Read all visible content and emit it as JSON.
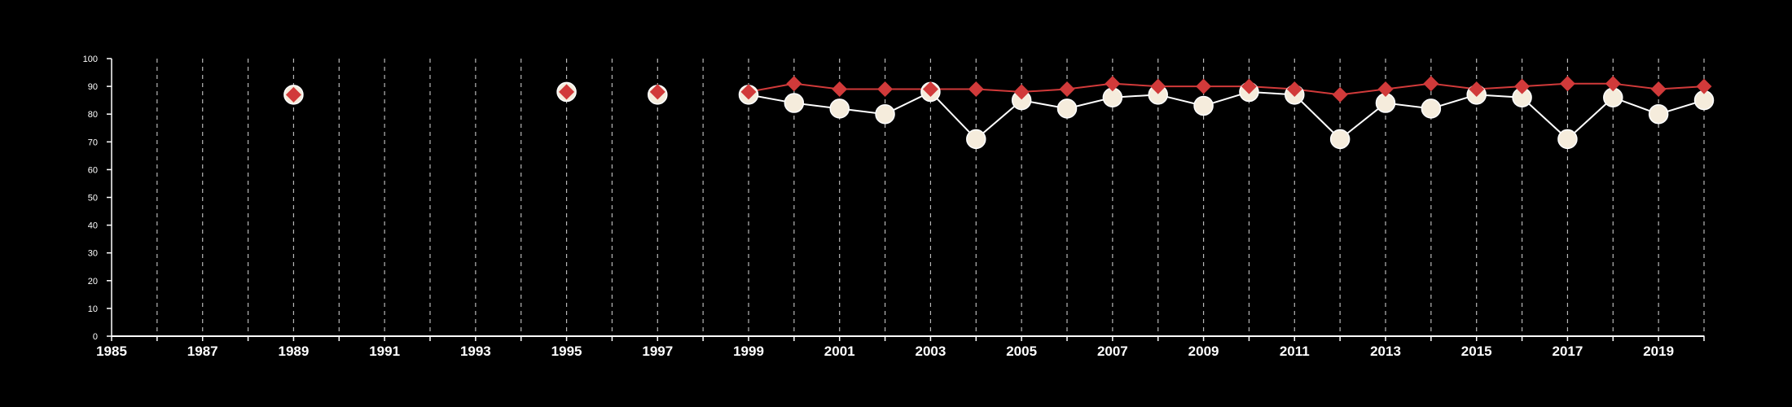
{
  "chart_data": {
    "type": "line",
    "x": [
      1989,
      1995,
      1997,
      1999,
      2000,
      2001,
      2002,
      2003,
      2004,
      2005,
      2006,
      2007,
      2008,
      2009,
      2010,
      2011,
      2012,
      2013,
      2014,
      2015,
      2016,
      2017,
      2018,
      2019,
      2020
    ],
    "xlim": [
      1985,
      2020
    ],
    "ylim": [
      0,
      100
    ],
    "x_tick_labels": [
      "1985",
      "1987",
      "1989",
      "1991",
      "1993",
      "1995",
      "1997",
      "1999",
      "2001",
      "2003",
      "2005",
      "2007",
      "2009",
      "2011",
      "2013",
      "2015",
      "2017",
      "2019"
    ],
    "y_tick_labels": [
      "0",
      "10",
      "20",
      "30",
      "40",
      "50",
      "60",
      "70",
      "80",
      "90",
      "100"
    ],
    "grid": "vertical dashed lines at every year",
    "legend": "none",
    "series": [
      {
        "marker": "circle",
        "color": "#f5ecdc",
        "line_color": "#ffffff",
        "values": [
          87,
          88,
          87,
          87,
          84,
          82,
          80,
          88,
          71,
          85,
          82,
          86,
          87,
          83,
          88,
          87,
          71,
          84,
          82,
          87,
          86,
          71,
          86,
          80,
          85
        ]
      },
      {
        "marker": "diamond",
        "color": "#d13a3a",
        "line_color": "#d13a3a",
        "values": [
          87,
          88,
          88,
          88,
          91,
          89,
          89,
          89,
          89,
          88,
          89,
          91,
          90,
          90,
          90,
          89,
          87,
          89,
          91,
          89,
          90,
          91,
          91,
          89,
          90
        ]
      }
    ],
    "line_start_index": 3
  }
}
